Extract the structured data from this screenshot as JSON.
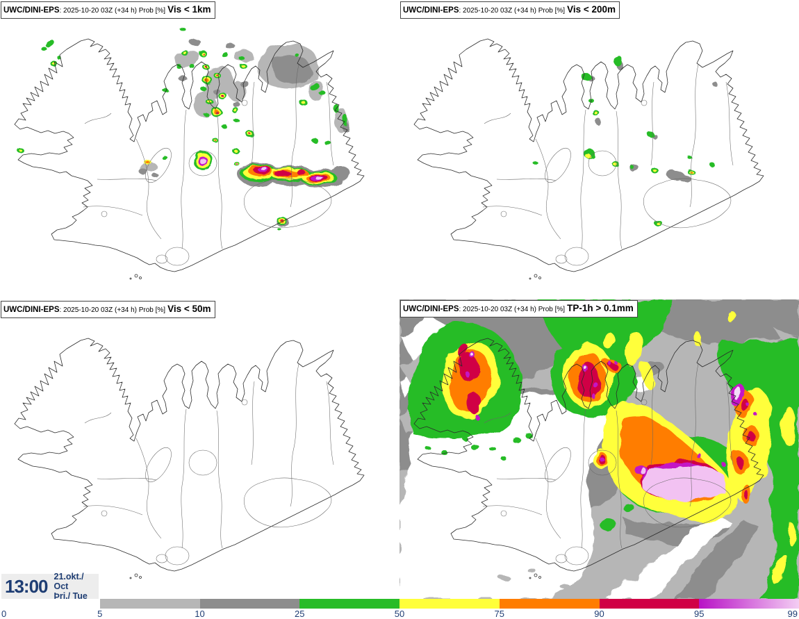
{
  "page": {
    "background": "#ffffff",
    "region_depicted": "Iceland"
  },
  "panels": [
    {
      "id": "vis-1km",
      "model": "UWC/DINI-EPS",
      "meta": ": 2025-10-20 03Z (+34 h) Prob [%]",
      "param": "Vis < 1km"
    },
    {
      "id": "vis-200m",
      "model": "UWC/DINI-EPS",
      "meta": ": 2025-10-20 03Z (+34 h) Prob [%]",
      "param": "Vis < 200m"
    },
    {
      "id": "vis-50m",
      "model": "UWC/DINI-EPS",
      "meta": ": 2025-10-20 03Z (+34 h) Prob [%]",
      "param": "Vis < 50m"
    },
    {
      "id": "tp-1h",
      "model": "UWC/DINI-EPS",
      "meta": ": 2025-10-20 03Z (+34 h) Prob [%]",
      "param": "TP-1h > 0.1mm"
    }
  ],
  "timebox": {
    "time": "13:00",
    "date_month": "21.okt./ Oct",
    "date_day": "Þri./ Tue"
  },
  "colorbar": {
    "tick_labels": [
      "0",
      "5",
      "10",
      "25",
      "50",
      "75",
      "90",
      "95",
      "99"
    ],
    "segment_colors": [
      "#ffffff",
      "#b6b6b6",
      "#8d8d8d",
      "#28bc28",
      "#ffff3a",
      "#ff7d00",
      "#d00045",
      "gradient"
    ],
    "gradient": {
      "from": "#b812c6",
      "to": "#f3cdf3"
    },
    "label_color": "#1e3d73",
    "units": "Prob [%]"
  },
  "colors": {
    "light_gray": "#b6b6b6",
    "dark_gray": "#8d8d8d",
    "green": "#28bc28",
    "yellow": "#ffff3a",
    "orange": "#ff7d00",
    "crimson": "#d00045",
    "magenta": "#c414c6",
    "pale_pink": "#f2c2f2",
    "pale_violet": "#f3dcf8",
    "navy": "#1e3d73",
    "timebox_bg": "#ededed"
  }
}
